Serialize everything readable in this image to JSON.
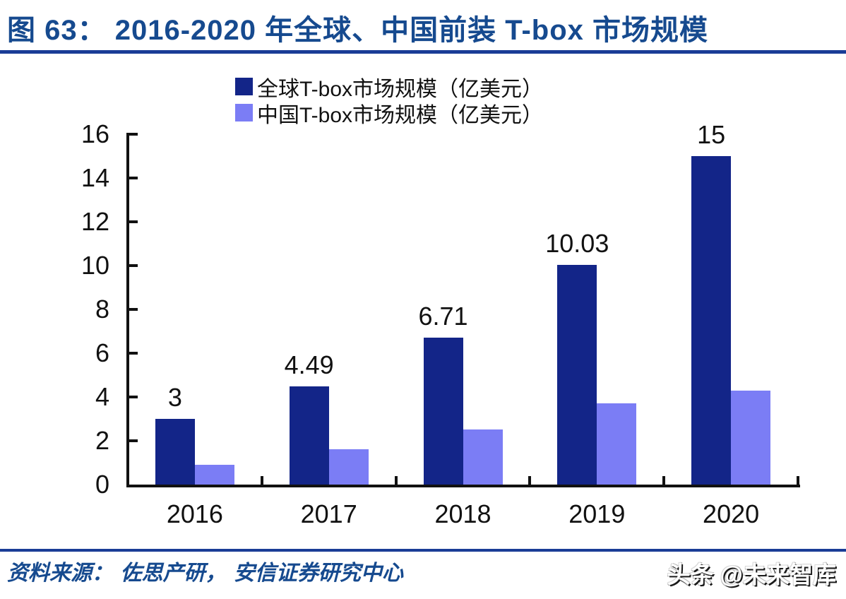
{
  "figure": {
    "title": "图 63：  2016-2020 年全球、中国前装 T-box 市场规模",
    "source": "资料来源：  佐思产研，  安信证券研究中心",
    "watermark": "头条 @未来智库"
  },
  "colors": {
    "title_blue": "#164A8F",
    "rule_blue": "#1A3C96",
    "axis_black": "#111111",
    "global_series": "#132588",
    "china_series": "#7B7DF5"
  },
  "chart_data": {
    "type": "bar",
    "title": "2016-2020 年全球、中国前装 T-box 市场规模",
    "categories": [
      "2016",
      "2017",
      "2018",
      "2019",
      "2020"
    ],
    "series": [
      {
        "name": "全球T-box市场规模（亿美元）",
        "color": "#132588",
        "values": [
          3,
          4.49,
          6.71,
          10.03,
          15
        ],
        "value_labels": [
          "3",
          "4.49",
          "6.71",
          "10.03",
          "15"
        ],
        "show_value_labels": true
      },
      {
        "name": "中国T-box市场规模（亿美元）",
        "color": "#7B7DF5",
        "values": [
          0.9,
          1.6,
          2.5,
          3.7,
          4.3
        ],
        "value_labels": [],
        "show_value_labels": false
      }
    ],
    "xlabel": "",
    "ylabel": "",
    "ylim": [
      0,
      16
    ],
    "ytick_step": 2,
    "grid": false,
    "legend_position": "top-center"
  }
}
